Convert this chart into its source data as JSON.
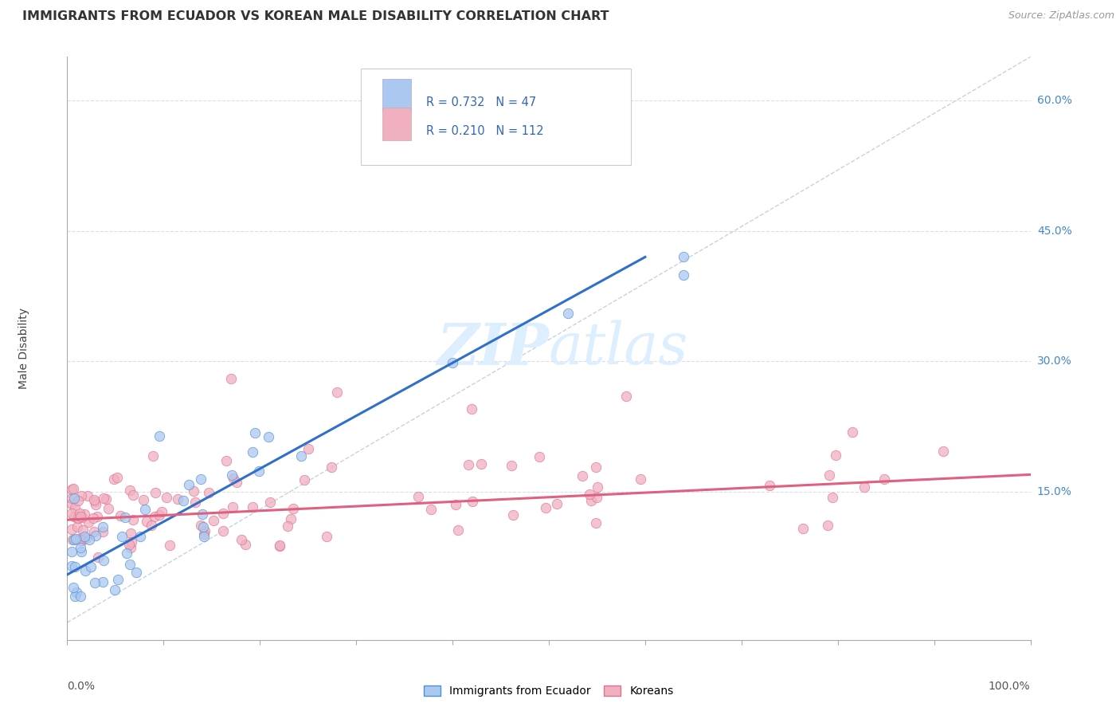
{
  "title": "IMMIGRANTS FROM ECUADOR VS KOREAN MALE DISABILITY CORRELATION CHART",
  "source": "Source: ZipAtlas.com",
  "ylabel": "Male Disability",
  "xmin": 0.0,
  "xmax": 1.0,
  "ymin": -0.02,
  "ymax": 0.65,
  "ytick_vals": [
    0.15,
    0.3,
    0.45,
    0.6
  ],
  "ytick_labels": [
    "15.0%",
    "30.0%",
    "45.0%",
    "60.0%"
  ],
  "ecuador_R": 0.732,
  "ecuador_N": 47,
  "korean_R": 0.21,
  "korean_N": 112,
  "ecuador_color": "#aac8f0",
  "ecuador_edge_color": "#5090d0",
  "ecuador_line_color": "#3070c8",
  "korean_color": "#f0b0c0",
  "korean_edge_color": "#e07090",
  "korean_line_color": "#e06080",
  "diagonal_color": "#b8c8d8",
  "background_color": "#ffffff",
  "grid_color": "#d8dde8",
  "watermark_color": "#ddeeff",
  "eq_line_x0": 0.0,
  "eq_line_y0": 0.055,
  "eq_line_x1": 0.6,
  "eq_line_y1": 0.42,
  "kr_line_x0": 0.0,
  "kr_line_y0": 0.118,
  "kr_line_x1": 1.0,
  "kr_line_y1": 0.17
}
